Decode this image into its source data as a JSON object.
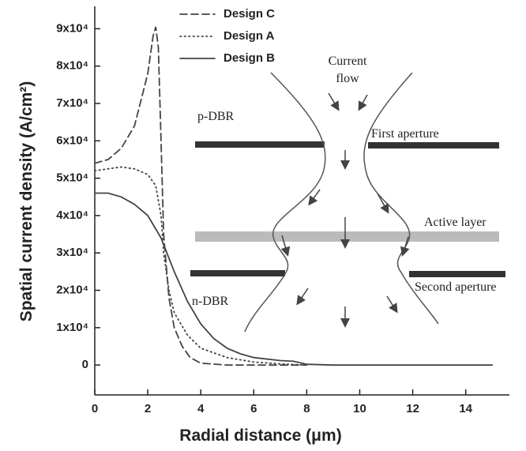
{
  "chart_data": {
    "type": "line",
    "x_label": "Radial distance (μm)",
    "y_label": "Spatial current density (A/cm²)",
    "xlim": [
      0,
      15.5
    ],
    "xticks": [
      0,
      2,
      4,
      6,
      8,
      10,
      12,
      14
    ],
    "ylim": [
      -8000,
      96000
    ],
    "yticks": [
      0,
      {
        "value": 10000,
        "label": "1x10⁴"
      },
      {
        "value": 20000,
        "label": "2x10⁴"
      },
      {
        "value": 30000,
        "label": "3x10⁴"
      },
      {
        "value": 40000,
        "label": "4x10⁴"
      },
      {
        "value": 50000,
        "label": "5x10⁴"
      },
      {
        "value": 60000,
        "label": "6x10⁴"
      },
      {
        "value": 70000,
        "label": "7x10⁴"
      },
      {
        "value": 80000,
        "label": "8x10⁴"
      },
      {
        "value": 90000,
        "label": "9x10⁴"
      }
    ],
    "legend": "upper left",
    "series": [
      {
        "name": "Design C",
        "color": "#444444",
        "style": "dashed",
        "x": [
          0,
          0.5,
          1,
          1.5,
          2,
          2.2,
          2.3,
          2.4,
          2.5,
          2.6,
          2.8,
          3,
          3.3,
          3.6,
          4,
          5,
          8
        ],
        "values": [
          54000,
          55000,
          58000,
          64000,
          78000,
          88000,
          90500,
          85000,
          60000,
          35000,
          18000,
          10000,
          5000,
          2000,
          500,
          0,
          0
        ]
      },
      {
        "name": "Design A",
        "color": "#444444",
        "style": "dotted",
        "x": [
          0,
          0.5,
          1,
          1.5,
          2,
          2.3,
          2.5,
          2.6,
          2.8,
          3,
          3.5,
          4,
          5,
          6,
          7,
          8
        ],
        "values": [
          52000,
          52500,
          53000,
          52500,
          51000,
          48000,
          40000,
          30000,
          20000,
          14000,
          8000,
          4500,
          2000,
          800,
          300,
          0
        ]
      },
      {
        "name": "Design B",
        "color": "#444444",
        "style": "solid",
        "x": [
          0,
          0.5,
          1,
          1.5,
          2,
          2.5,
          3,
          3.5,
          4,
          4.5,
          5,
          5.5,
          6,
          7,
          7.5,
          8,
          9,
          12,
          15
        ],
        "values": [
          46000,
          46000,
          45000,
          43000,
          40000,
          34000,
          25000,
          17000,
          11000,
          7000,
          4500,
          3000,
          2000,
          1200,
          1000,
          200,
          0,
          0,
          0
        ]
      }
    ]
  },
  "diagram": {
    "current_flow": [
      "Current",
      "flow"
    ],
    "p_dbr": "p-DBR",
    "n_dbr": "n-DBR",
    "first_aperture": "First aperture",
    "active_layer": "Active layer",
    "second_aperture": "Second aperture"
  }
}
